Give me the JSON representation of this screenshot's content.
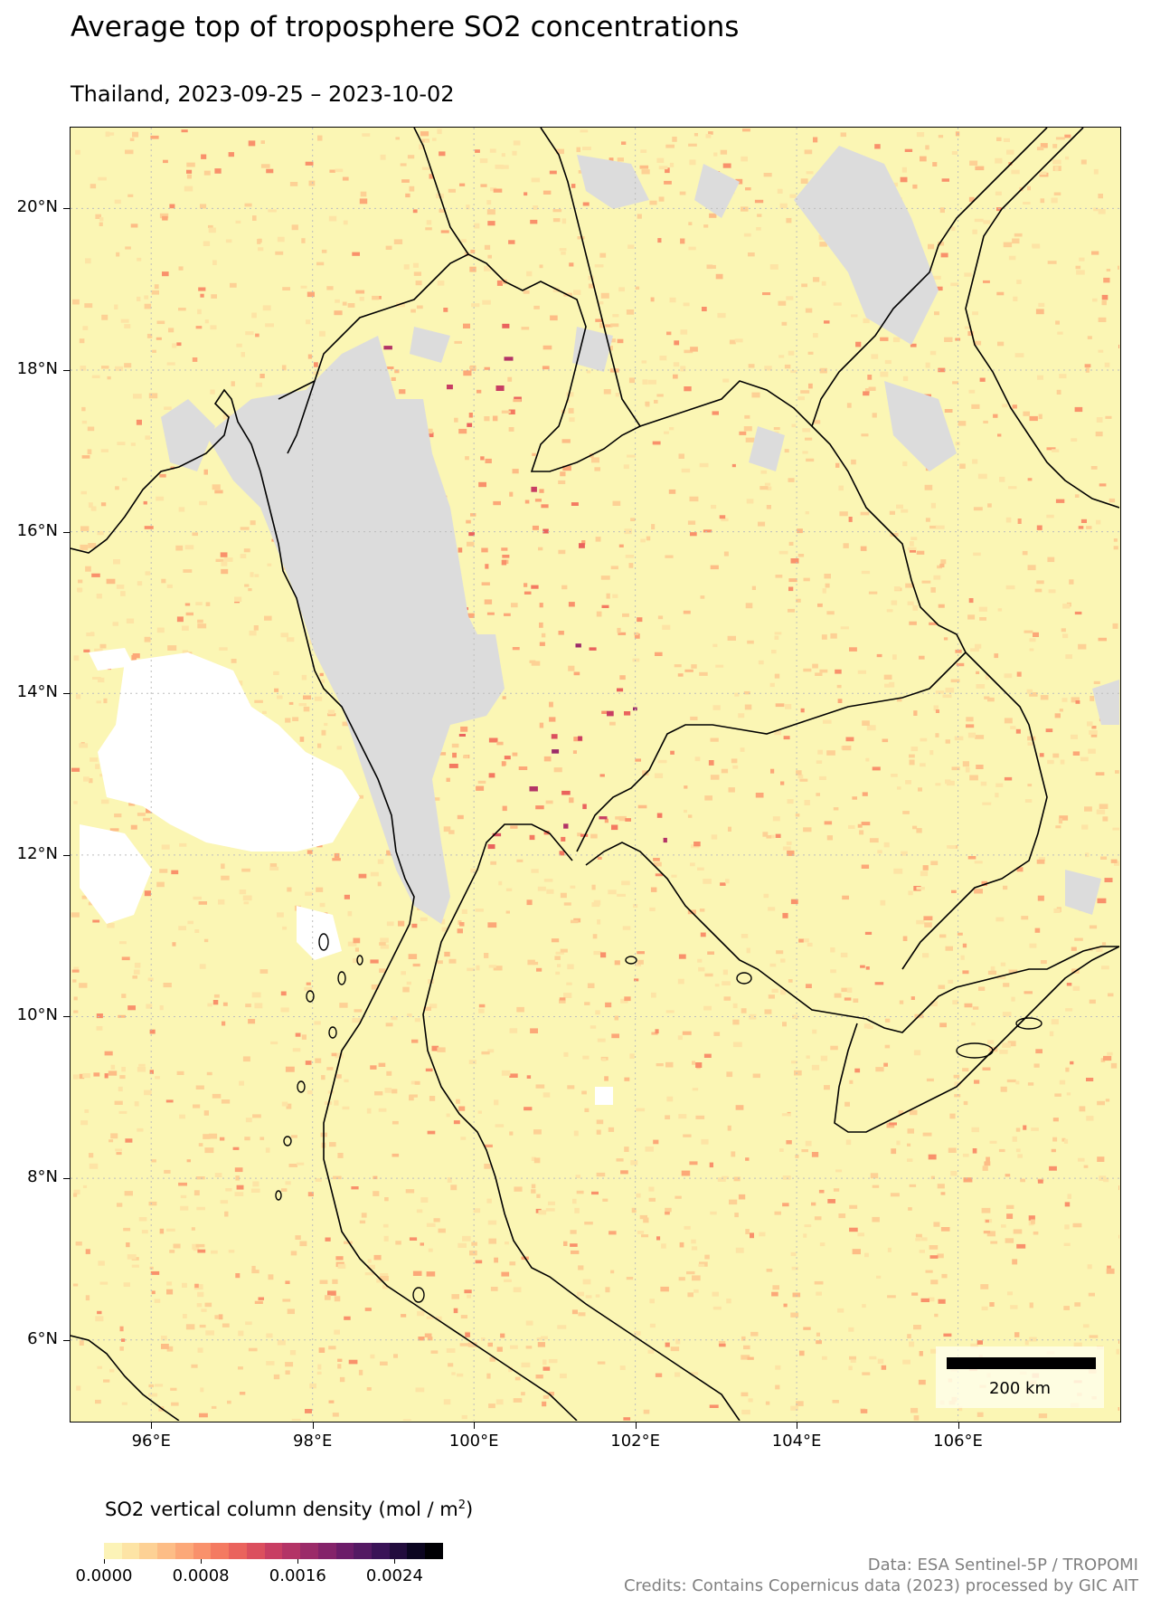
{
  "header": {
    "title": "Average top of troposphere SO2 concentrations",
    "subtitle": "Thailand, 2023-09-25 – 2023-10-02"
  },
  "map": {
    "region": "Thailand",
    "lat_ticks": [
      "20°N",
      "18°N",
      "16°N",
      "14°N",
      "12°N",
      "10°N",
      "8°N",
      "6°N"
    ],
    "lon_ticks": [
      "96°E",
      "98°E",
      "100°E",
      "102°E",
      "104°E",
      "106°E"
    ],
    "extent": {
      "lon": [
        95.0,
        108.0
      ],
      "lat": [
        5.0,
        21.0
      ]
    },
    "gridlines": true,
    "background_color": "#fbf6b4",
    "missing_data_color": "#dcdcdc",
    "coastline_color": "#000000"
  },
  "scale_bar": {
    "label": "200 km"
  },
  "colorbar": {
    "label": "SO2 vertical column density (mol / m",
    "label_sup": "2",
    "label_end": ")",
    "ticks": [
      "0.0000",
      "0.0008",
      "0.0016",
      "0.0024"
    ],
    "range": [
      0.0,
      0.0028
    ],
    "colormap": "magma_r",
    "colors": [
      "#fcf3b7",
      "#fde4a5",
      "#fdd195",
      "#fdbd86",
      "#fca878",
      "#f9916b",
      "#f47a61",
      "#ea635d",
      "#db4f5e",
      "#c83e63",
      "#b33466",
      "#9b2b69",
      "#84236a",
      "#6c1c69",
      "#541963",
      "#3a1357",
      "#220c3d",
      "#0b0520",
      "#000004"
    ]
  },
  "credits": {
    "line1": "Data: ESA Sentinel-5P / TROPOMI",
    "line2": "Credits: Contains Copernicus data (2023) processed by GIC AIT"
  }
}
